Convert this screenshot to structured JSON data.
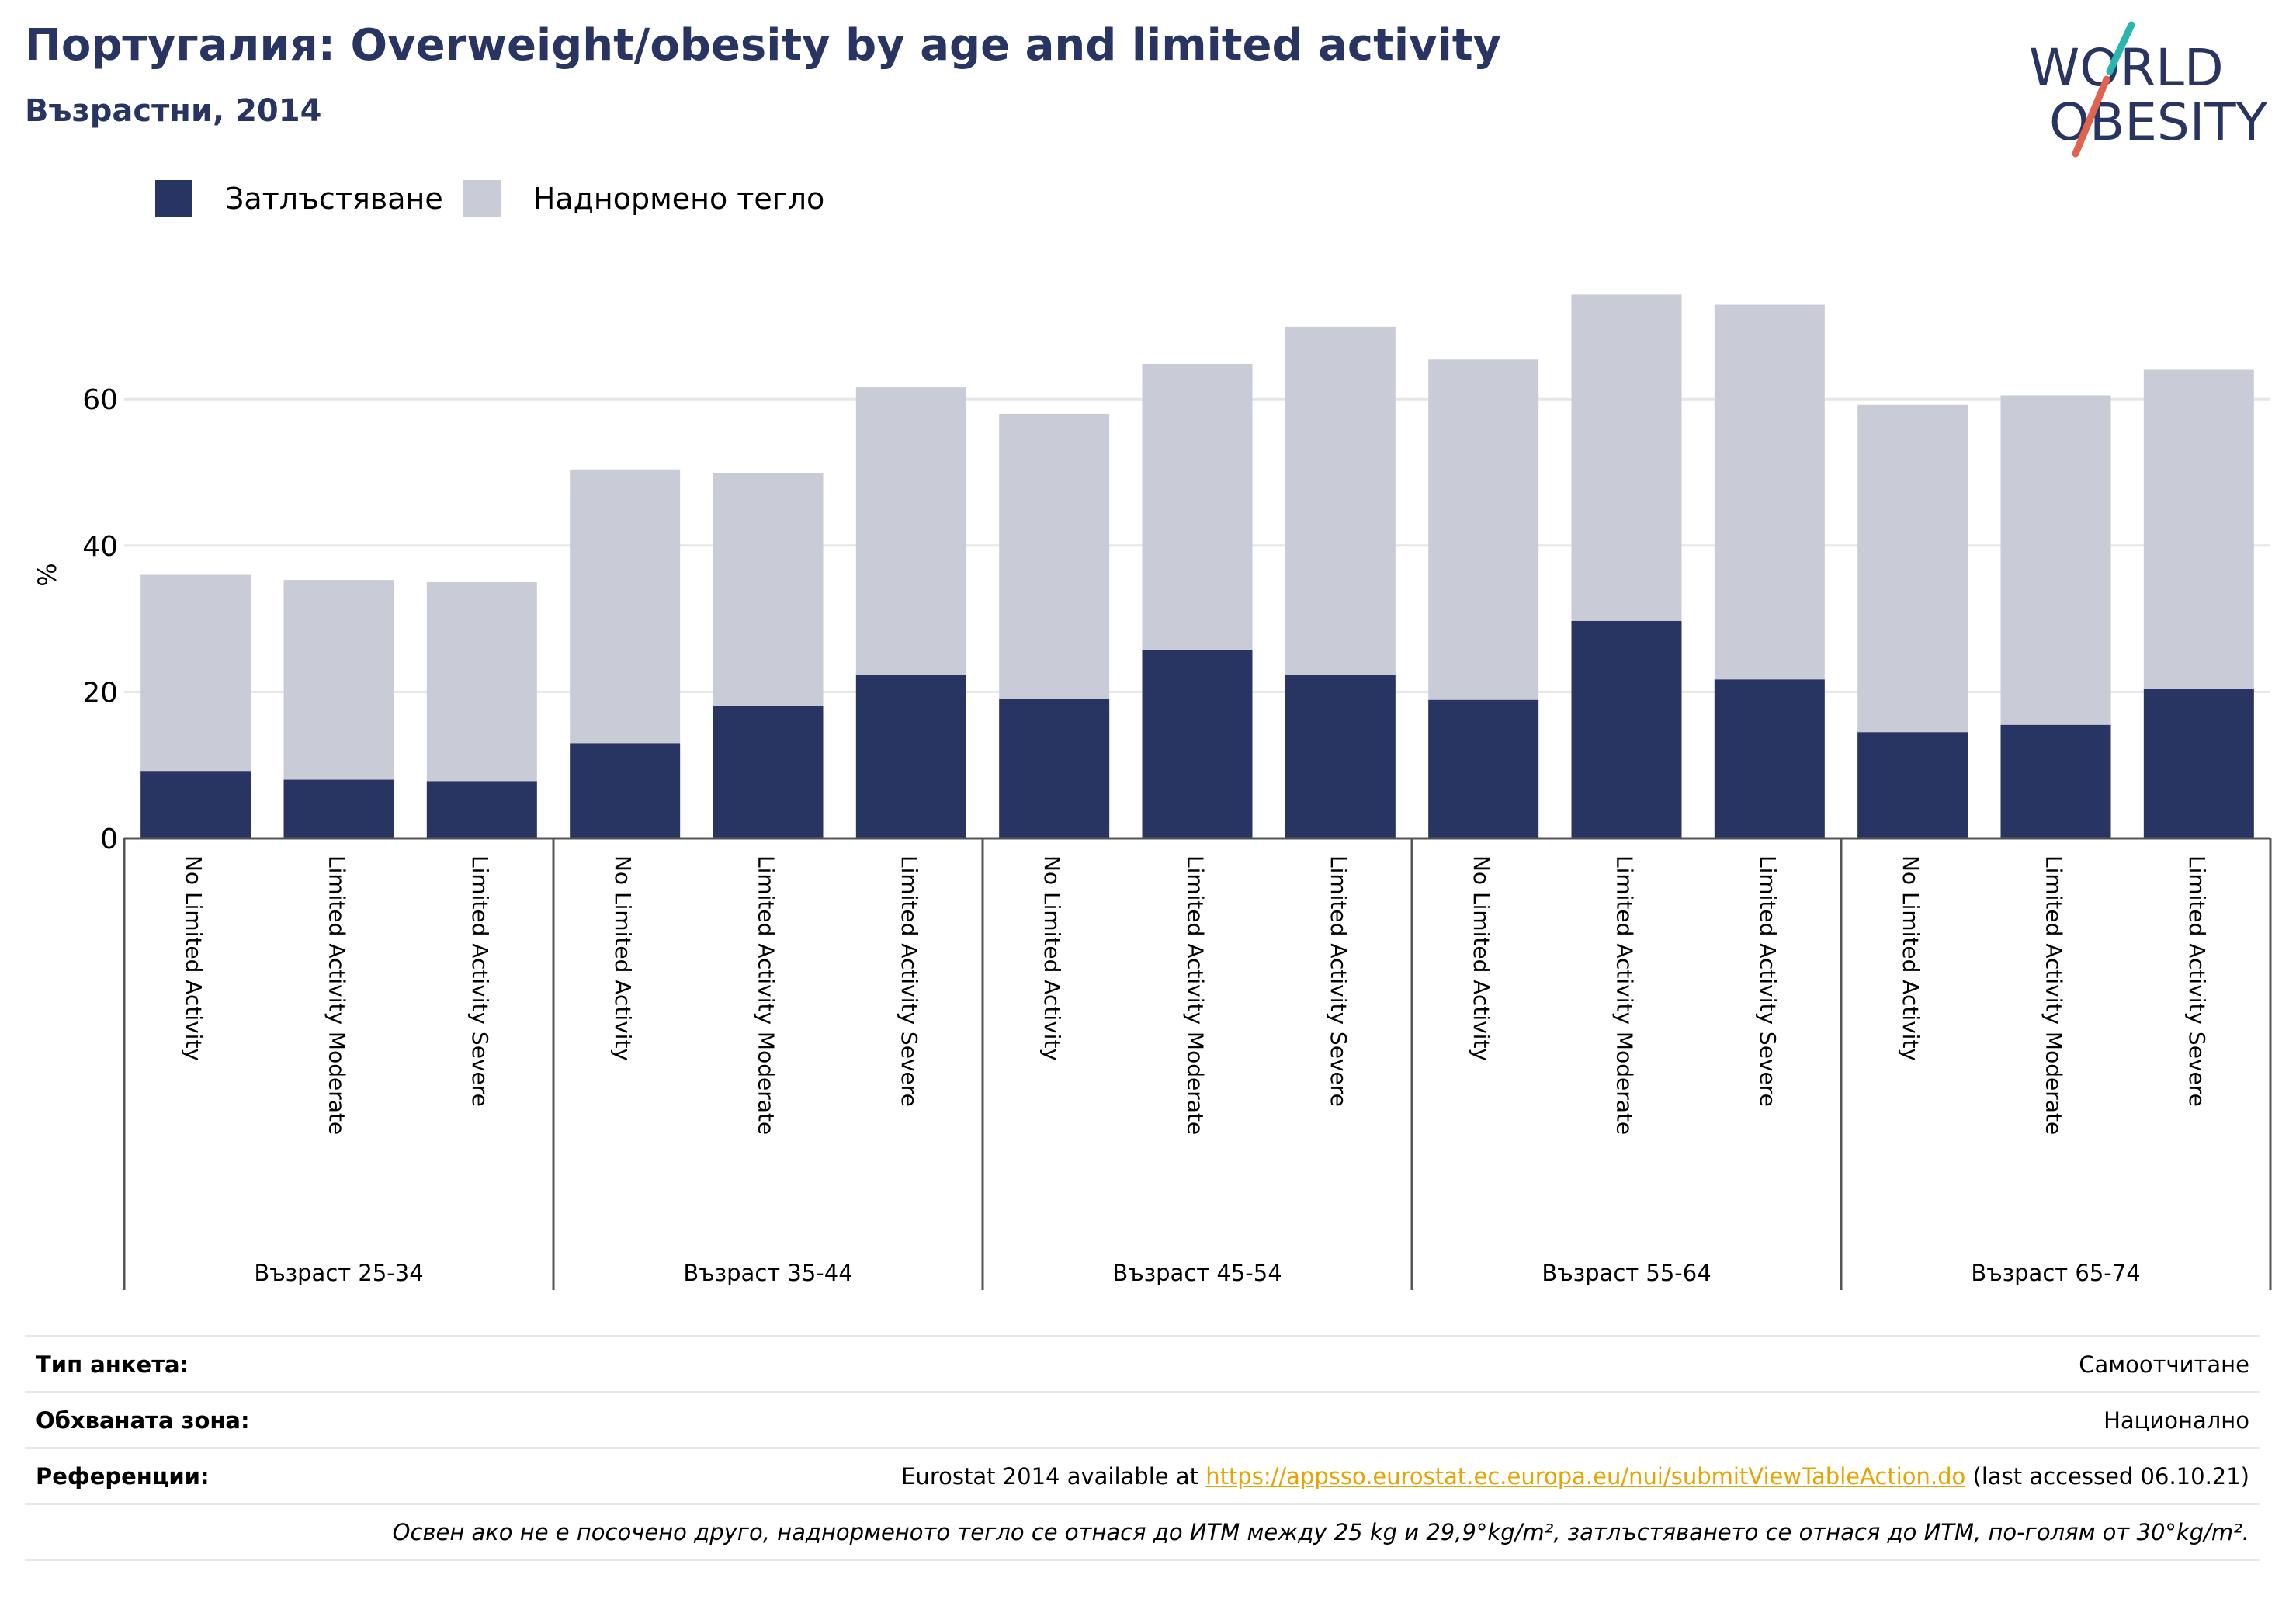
{
  "header": {
    "title": "Португалия: Overweight/obesity by age and limited activity",
    "subtitle": "Възрастни, 2014",
    "logo_line1": "WORLD",
    "logo_line2": "OBESITY"
  },
  "legend": {
    "items": [
      {
        "label": "Затлъстяване",
        "color": "#283562"
      },
      {
        "label": "Наднормено тегло",
        "color": "#c9cbd7"
      }
    ]
  },
  "colors": {
    "obesity": "#283562",
    "overweight": "#c9cbd7",
    "grid": "#e6e6ea",
    "axis": "#555555",
    "link": "#e6a400",
    "logo_slash_top": "#2bb5b0",
    "logo_slash_bottom": "#e0634f"
  },
  "chart_data": {
    "type": "bar",
    "stacked": true,
    "title": "Португалия: Overweight/obesity by age and limited activity",
    "subtitle": "Възрастни, 2014",
    "ylabel": "%",
    "ylim": [
      0,
      80
    ],
    "yticks": [
      0,
      20,
      40,
      60
    ],
    "grid": true,
    "legend_position": "top-left",
    "groups": [
      {
        "label": "Възраст 25-34",
        "categories": [
          "No Limited Activity",
          "Limited Activity Moderate",
          "Limited Activity Severe"
        ],
        "obesity": [
          9.2,
          8.0,
          7.8
        ],
        "total": [
          36.0,
          35.3,
          35.0
        ]
      },
      {
        "label": "Възраст 35-44",
        "categories": [
          "No Limited Activity",
          "Limited Activity Moderate",
          "Limited Activity Severe"
        ],
        "obesity": [
          13.0,
          18.1,
          22.3
        ],
        "total": [
          50.4,
          49.9,
          61.6
        ]
      },
      {
        "label": "Възраст 45-54",
        "categories": [
          "No Limited Activity",
          "Limited Activity Moderate",
          "Limited Activity Severe"
        ],
        "obesity": [
          19.0,
          25.7,
          22.3
        ],
        "total": [
          57.9,
          64.8,
          69.9
        ]
      },
      {
        "label": "Възраст 55-64",
        "categories": [
          "No Limited Activity",
          "Limited Activity Moderate",
          "Limited Activity Severe"
        ],
        "obesity": [
          18.9,
          29.7,
          21.7
        ],
        "total": [
          65.4,
          74.3,
          72.9
        ]
      },
      {
        "label": "Възраст 65-74",
        "categories": [
          "No Limited Activity",
          "Limited Activity Moderate",
          "Limited Activity Severe"
        ],
        "obesity": [
          14.5,
          15.5,
          20.4
        ],
        "total": [
          59.2,
          60.5,
          64.0
        ]
      }
    ],
    "series": [
      {
        "name": "Затлъстяване",
        "key": "obesity"
      },
      {
        "name": "Наднормено тегло",
        "key": "total"
      }
    ]
  },
  "info": {
    "survey_label": "Тип анкета:",
    "survey_value": "Самоотчитане",
    "coverage_label": "Обхваната зона:",
    "coverage_value": "Национално",
    "ref_label": "Референции:",
    "ref_prefix": "Eurostat 2014 available at ",
    "ref_link": "https://appsso.eurostat.ec.europa.eu/nui/submitViewTableAction.do",
    "ref_suffix": " (last accessed 06.10.21)",
    "note": "Освен ако не е посочено друго, наднорменото тегло се отнася до ИТМ между 25 kg и 29,9°kg/m², затлъстяването се отнася до ИТМ, по-голям от 30°kg/m²."
  }
}
